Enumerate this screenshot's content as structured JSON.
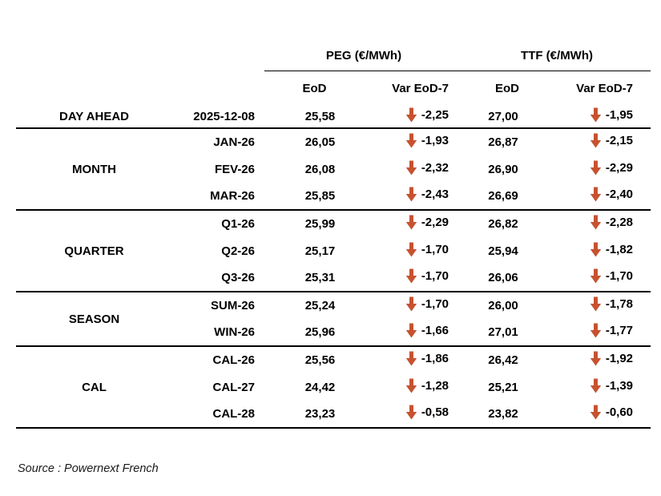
{
  "colors": {
    "down_arrow": "#C65230",
    "border": "#000000",
    "text": "#000000"
  },
  "table": {
    "column_groups": [
      {
        "label": "PEG (€/MWh)"
      },
      {
        "label": "TTF (€/MWh)"
      }
    ],
    "sub_headers": [
      "EoD",
      "Var EoD-7",
      "EoD",
      "Var EoD-7"
    ],
    "var_icon": "down-arrow",
    "sections": [
      {
        "group": "DAY AHEAD",
        "rows": [
          {
            "tenor": "2025-12-08",
            "peg_eod": "25,58",
            "peg_var": "-2,25",
            "peg_var_dir": "down",
            "ttf_eod": "27,00",
            "ttf_var": "-1,95",
            "ttf_var_dir": "down"
          }
        ]
      },
      {
        "group": "MONTH",
        "rows": [
          {
            "tenor": "JAN-26",
            "peg_eod": "26,05",
            "peg_var": "-1,93",
            "peg_var_dir": "down",
            "ttf_eod": "26,87",
            "ttf_var": "-2,15",
            "ttf_var_dir": "down"
          },
          {
            "tenor": "FEV-26",
            "peg_eod": "26,08",
            "peg_var": "-2,32",
            "peg_var_dir": "down",
            "ttf_eod": "26,90",
            "ttf_var": "-2,29",
            "ttf_var_dir": "down"
          },
          {
            "tenor": "MAR-26",
            "peg_eod": "25,85",
            "peg_var": "-2,43",
            "peg_var_dir": "down",
            "ttf_eod": "26,69",
            "ttf_var": "-2,40",
            "ttf_var_dir": "down"
          }
        ]
      },
      {
        "group": "QUARTER",
        "rows": [
          {
            "tenor": "Q1-26",
            "peg_eod": "25,99",
            "peg_var": "-2,29",
            "peg_var_dir": "down",
            "ttf_eod": "26,82",
            "ttf_var": "-2,28",
            "ttf_var_dir": "down"
          },
          {
            "tenor": "Q2-26",
            "peg_eod": "25,17",
            "peg_var": "-1,70",
            "peg_var_dir": "down",
            "ttf_eod": "25,94",
            "ttf_var": "-1,82",
            "ttf_var_dir": "down"
          },
          {
            "tenor": "Q3-26",
            "peg_eod": "25,31",
            "peg_var": "-1,70",
            "peg_var_dir": "down",
            "ttf_eod": "26,06",
            "ttf_var": "-1,70",
            "ttf_var_dir": "down"
          }
        ]
      },
      {
        "group": "SEASON",
        "rows": [
          {
            "tenor": "SUM-26",
            "peg_eod": "25,24",
            "peg_var": "-1,70",
            "peg_var_dir": "down",
            "ttf_eod": "26,00",
            "ttf_var": "-1,78",
            "ttf_var_dir": "down"
          },
          {
            "tenor": "WIN-26",
            "peg_eod": "25,96",
            "peg_var": "-1,66",
            "peg_var_dir": "down",
            "ttf_eod": "27,01",
            "ttf_var": "-1,77",
            "ttf_var_dir": "down"
          }
        ]
      },
      {
        "group": "CAL",
        "rows": [
          {
            "tenor": "CAL-26",
            "peg_eod": "25,56",
            "peg_var": "-1,86",
            "peg_var_dir": "down",
            "ttf_eod": "26,42",
            "ttf_var": "-1,92",
            "ttf_var_dir": "down"
          },
          {
            "tenor": "CAL-27",
            "peg_eod": "24,42",
            "peg_var": "-1,28",
            "peg_var_dir": "down",
            "ttf_eod": "25,21",
            "ttf_var": "-1,39",
            "ttf_var_dir": "down"
          },
          {
            "tenor": "CAL-28",
            "peg_eod": "23,23",
            "peg_var": "-0,58",
            "peg_var_dir": "down",
            "ttf_eod": "23,82",
            "ttf_var": "-0,60",
            "ttf_var_dir": "down"
          }
        ]
      }
    ]
  },
  "footer": {
    "source": "Source : Powernext French"
  }
}
